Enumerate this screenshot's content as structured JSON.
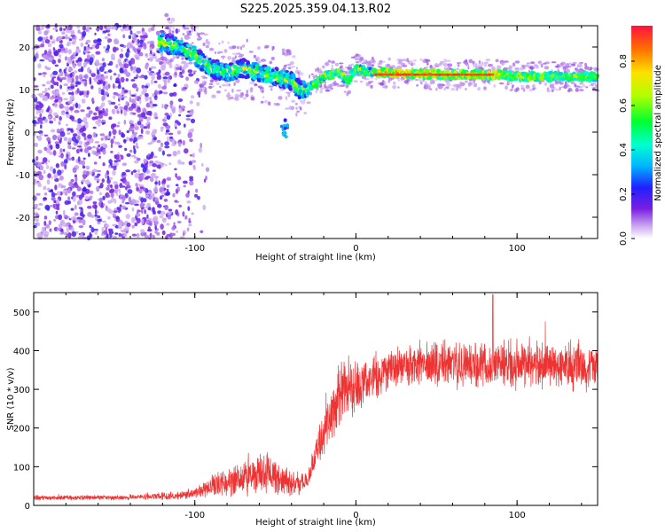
{
  "title": "S225.2025.359.04.13.R02",
  "chart_data": [
    {
      "type": "heatmap",
      "xlabel": "Height of straight line (km)",
      "ylabel": "Frequency (Hz)",
      "xlim": [
        -200,
        150
      ],
      "ylim": [
        -25,
        25
      ],
      "x_ticks": [
        -100,
        0,
        100
      ],
      "y_ticks": [
        -20,
        -10,
        0,
        10,
        20
      ],
      "colorbar": {
        "label": "Normalized spectral amplitude",
        "range": [
          0.0,
          0.96
        ],
        "ticks": [
          "0.0",
          "0.2",
          "0.4",
          "0.6",
          "0.8"
        ]
      },
      "ridge": {
        "x": [
          -120,
          -110,
          -100,
          -90,
          -80,
          -70,
          -60,
          -50,
          -40,
          -35,
          -30,
          -20,
          -10,
          -5,
          0,
          10,
          50,
          90,
          100,
          150
        ],
        "freq": [
          21,
          20,
          18,
          15,
          14,
          15,
          14,
          13,
          12,
          10,
          10,
          13,
          14,
          12,
          15,
          14,
          13.5,
          13.5,
          13,
          13
        ]
      },
      "isolated_blob": {
        "x": -44,
        "freq": 1
      }
    },
    {
      "type": "line",
      "xlabel": "Height of straight line (km)",
      "ylabel": "SNR (10 * v/v)",
      "xlim": [
        -200,
        150
      ],
      "ylim": [
        0,
        550
      ],
      "x_ticks": [
        -100,
        0,
        100
      ],
      "y_ticks": [
        0,
        100,
        200,
        300,
        400,
        500
      ],
      "color": "#ee3333",
      "envelope": {
        "x": [
          -200,
          -150,
          -110,
          -100,
          -90,
          -80,
          -70,
          -60,
          -50,
          -40,
          -30,
          -25,
          -20,
          -10,
          0,
          10,
          20,
          40,
          60,
          100,
          150
        ],
        "mean": [
          20,
          20,
          25,
          35,
          50,
          60,
          70,
          80,
          75,
          55,
          60,
          130,
          200,
          280,
          310,
          330,
          350,
          360,
          365,
          365,
          360
        ],
        "spread": [
          10,
          10,
          15,
          25,
          40,
          60,
          70,
          80,
          70,
          50,
          40,
          60,
          100,
          130,
          120,
          100,
          90,
          90,
          90,
          100,
          100
        ]
      },
      "peak": {
        "x": 85,
        "y": 545
      }
    }
  ]
}
